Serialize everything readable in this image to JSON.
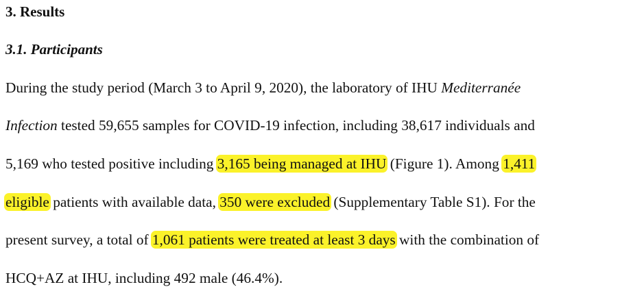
{
  "section": {
    "heading": "3. Results",
    "subheading": "3.1. Participants"
  },
  "paragraph": {
    "line1": {
      "a": "During the study period (March 3 to April 9, 2020), the laboratory of IHU ",
      "b": "Mediterranée"
    },
    "line2": {
      "a": "Infection",
      "b": " tested 59,655 samples for COVID-19 infection, including 38,617 individuals and"
    },
    "line3": {
      "a": "5,169 who tested positive including ",
      "h1": "3,165 being managed at IHU",
      "b": " (Figure 1). Among ",
      "h2": "1,411"
    },
    "line4": {
      "h1": "eligible",
      "a": " patients with available data, ",
      "h2": "350 were excluded",
      "b": " (Supplementary Table S1). For the"
    },
    "line5": {
      "a": "present survey, a total of ",
      "h1": "1,061 patients were treated at least 3 days",
      "b": " with the combination of"
    },
    "line6": {
      "a": "HCQ+AZ at IHU, including 492 male (46.4%)."
    }
  },
  "colors": {
    "highlight": "#fbf22a",
    "text": "#111111",
    "background": "#ffffff"
  }
}
